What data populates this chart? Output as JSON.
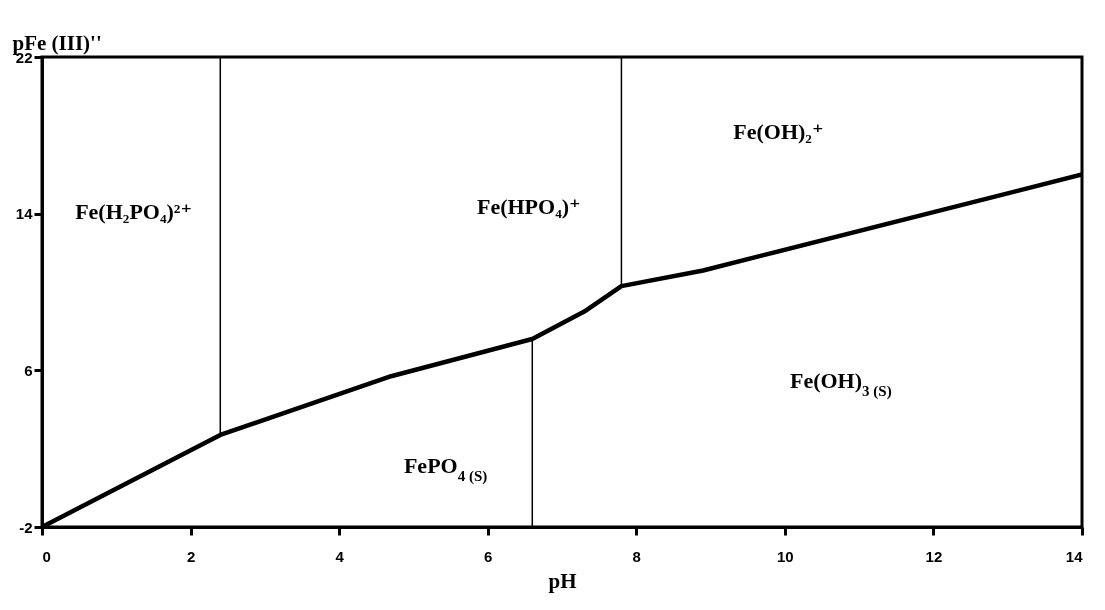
{
  "chart_data": {
    "type": "line",
    "xlabel": "pH",
    "ylabel": "pFe (III)''",
    "xlim": [
      0,
      14
    ],
    "xticks": [
      0,
      2,
      4,
      6,
      8,
      10,
      12,
      14
    ],
    "ylim": [
      -2,
      22
    ],
    "yticks": [
      -2,
      6,
      14,
      22
    ],
    "series": [
      {
        "color": "#000000",
        "x": [
          0,
          2.4,
          4.7,
          6.6,
          7.3,
          7.8,
          8.9,
          14
        ],
        "values": [
          -2,
          2.7,
          5.7,
          7.6,
          9.0,
          10.3,
          11.1,
          16
        ]
      },
      {
        "color": "#000000",
        "x": [
          2.4,
          2.4
        ],
        "values": [
          2.7,
          22
        ]
      },
      {
        "color": "#000000",
        "x": [
          6.6,
          6.6
        ],
        "values": [
          -2,
          7.6
        ]
      },
      {
        "color": "#000000",
        "x": [
          7.8,
          7.8
        ],
        "values": [
          10.3,
          22
        ]
      }
    ],
    "annotations": [
      "Fe(H₂PO₄)²⁺",
      "Fe(HPO₄)⁺",
      "Fe(OH)₂⁺",
      "FePO$_{4 (S)}$",
      "Fe(OH)$_{3 (S)}$"
    ]
  }
}
